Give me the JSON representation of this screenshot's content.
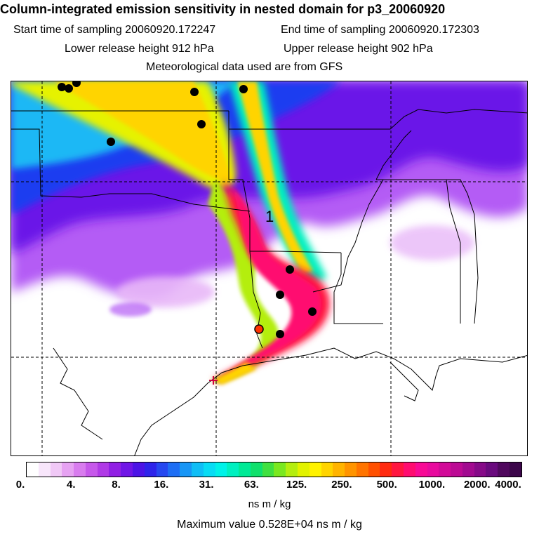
{
  "header": {
    "title": "Column-integrated emission sensitivity in nested domain for p3_20060920",
    "start_label": "Start time of sampling 20060920.172247",
    "end_label": "End time of sampling 20060920.172303",
    "lower_label": "Lower release height  912 hPa",
    "upper_label": "Upper release height  902 hPa",
    "met_label": "Meteorological data used are from GFS"
  },
  "map": {
    "plume_label": "1",
    "release_marker_color": "#ff3300",
    "station_marker_color": "#000000",
    "background_colors": [
      "#1a3cf0",
      "#6b18e8",
      "#b45cf5",
      "#e8b8f8",
      "#1fb8f5"
    ]
  },
  "legend": {
    "tick_labels": [
      "0.",
      "4.",
      "8.",
      "16.",
      "31.",
      "63.",
      "125.",
      "250.",
      "500.",
      "1000.",
      "2000.",
      "4000."
    ],
    "colors": [
      "#ffffff",
      "#f8e6fb",
      "#f0c8f6",
      "#e6a2f2",
      "#d87cee",
      "#c658ea",
      "#b03ae6",
      "#9120e4",
      "#7016e6",
      "#4c14e6",
      "#2e24ea",
      "#2648f0",
      "#1e6ef4",
      "#1896f6",
      "#10bef6",
      "#08dcf4",
      "#00f2e8",
      "#00f0c0",
      "#00ea96",
      "#10e06c",
      "#40e040",
      "#7ae820",
      "#b4ee10",
      "#e2f200",
      "#fff200",
      "#ffd400",
      "#ffb400",
      "#ff9400",
      "#ff7400",
      "#ff5000",
      "#ff2a10",
      "#ff1640",
      "#ff0c70",
      "#f80a96",
      "#e80a9e",
      "#d20a98",
      "#bc0a94",
      "#a20a90",
      "#860a88",
      "#6a0a7e",
      "#50085e",
      "#3c064a"
    ],
    "unit": "ns m / kg",
    "max_value_label": "Maximum value  0.528E+04 ns m / kg"
  }
}
